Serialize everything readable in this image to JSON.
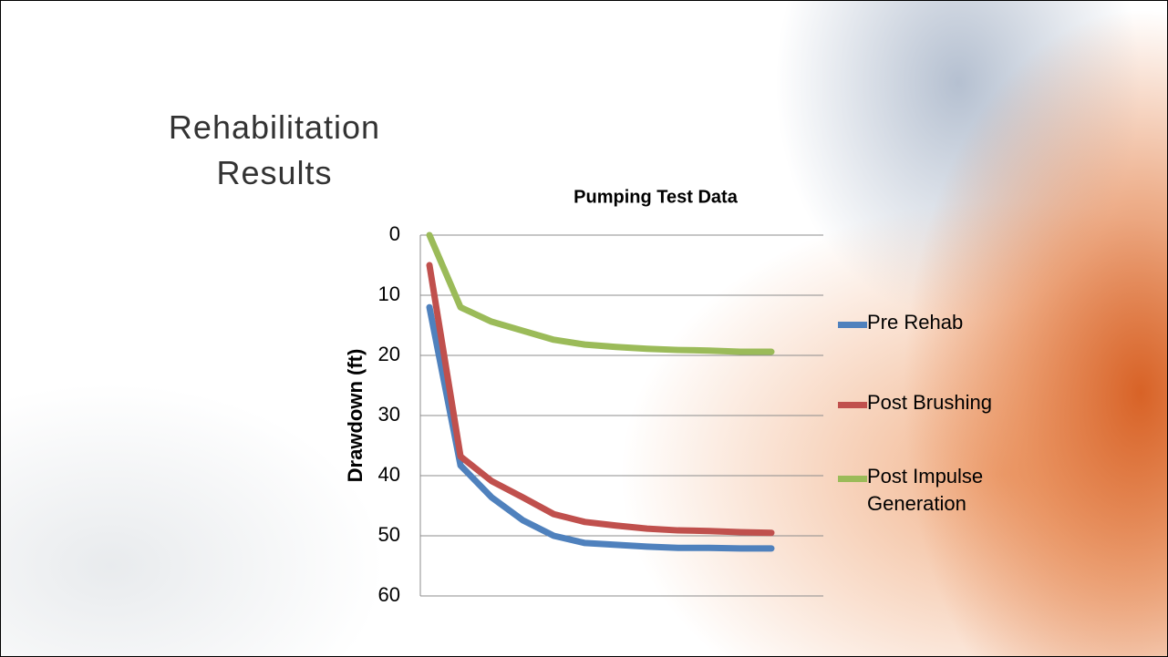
{
  "slide": {
    "title_line1": "Rehabilitation",
    "title_line2": "Results"
  },
  "chart_data": {
    "type": "line",
    "title": "Pumping Test Data",
    "y_label": "Drawdown (ft)",
    "categories": [
      null,
      null,
      null,
      null,
      null,
      null,
      null,
      null,
      null,
      null,
      null,
      null
    ],
    "series": [
      {
        "name": "Pre Rehab",
        "color": "#4f81bd",
        "values": [
          12,
          38.3,
          43.6,
          47.4,
          50,
          51.2,
          51.5,
          51.8,
          52,
          52,
          52.1,
          52.1
        ]
      },
      {
        "name": "Post Brushing",
        "color": "#c0504d",
        "values": [
          5,
          36.8,
          40.9,
          43.6,
          46.4,
          47.7,
          48.3,
          48.8,
          49.1,
          49.2,
          49.4,
          49.5
        ]
      },
      {
        "name": "Post Impulse Generation",
        "color": "#9bbb59",
        "values": [
          0,
          12,
          14.4,
          15.9,
          17.4,
          18.2,
          18.6,
          18.9,
          19.1,
          19.2,
          19.4,
          19.4
        ]
      }
    ],
    "ylim": [
      0,
      60
    ],
    "yticks": [
      0,
      10,
      20,
      30,
      40,
      50,
      60
    ],
    "y_reversed": true,
    "grid": true,
    "legend": "right"
  }
}
